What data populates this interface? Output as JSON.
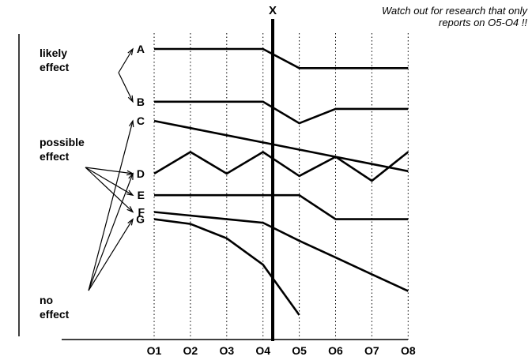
{
  "note": [
    "Watch out for research that only",
    "reports on O5-O4 !!"
  ],
  "intervention": "X",
  "observations": [
    "O1",
    "O2",
    "O3",
    "O4",
    "O5",
    "O6",
    "O7",
    "O8"
  ],
  "series": [
    {
      "name": "A",
      "values": [
        92,
        92,
        92,
        92,
        84,
        84,
        84,
        84
      ]
    },
    {
      "name": "B",
      "values": [
        70,
        70,
        70,
        70,
        61,
        67,
        67,
        67
      ]
    },
    {
      "name": "C",
      "values": [
        62,
        59,
        56,
        53,
        50,
        47,
        44,
        41
      ]
    },
    {
      "name": "D",
      "values": [
        40,
        49,
        40,
        49,
        39,
        47,
        37,
        49
      ]
    },
    {
      "name": "E",
      "values": [
        31,
        31,
        31,
        31,
        31,
        21,
        21,
        21
      ]
    },
    {
      "name": "F",
      "values": [
        24,
        22.5,
        21,
        19.5,
        12,
        5,
        -2,
        -9
      ]
    },
    {
      "name": "G",
      "values": [
        21,
        19,
        13,
        2,
        -19
      ]
    }
  ],
  "groups": [
    {
      "lines": [
        "likely",
        "effect"
      ],
      "targets": [
        "A",
        "B"
      ]
    },
    {
      "lines": [
        "possible",
        "effect"
      ],
      "targets": [
        "D",
        "E",
        "F"
      ]
    },
    {
      "lines": [
        "no",
        "effect"
      ],
      "targets": [
        "C",
        "D",
        "G"
      ]
    }
  ]
}
